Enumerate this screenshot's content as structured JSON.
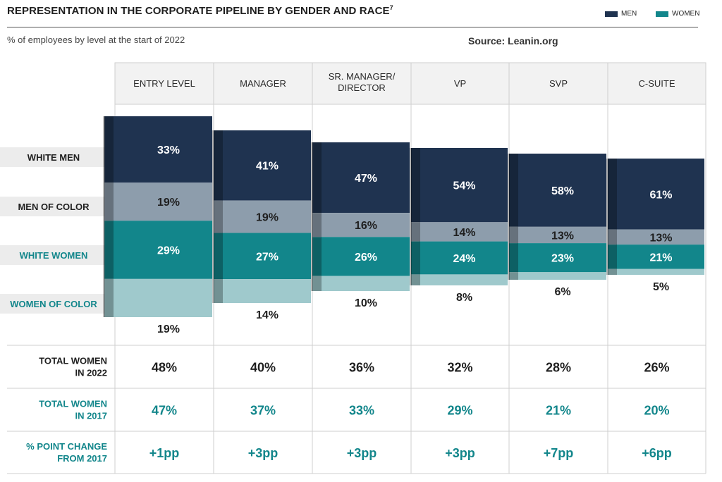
{
  "header": {
    "title": "REPRESENTATION IN THE CORPORATE PIPELINE BY GENDER AND RACE",
    "title_sup": "7",
    "subtitle": "% of employees by level at the start of 2022",
    "source": "Source: Leanin.org"
  },
  "legend": {
    "men_label": "MEN",
    "women_label": "WOMEN"
  },
  "colors": {
    "men": "#1f3350",
    "women": "#12868b",
    "white_men": "#1f3350",
    "men_of_color": "#8d9dac",
    "white_women": "#12868b",
    "women_of_color": "#9fc9cc",
    "teal_text": "#12868b"
  },
  "chart_data": {
    "type": "bar",
    "stacked": true,
    "categories": [
      "ENTRY LEVEL",
      "MANAGER",
      "SR. MANAGER/\nDIRECTOR",
      "VP",
      "SVP",
      "C-SUITE"
    ],
    "series": [
      {
        "name": "WHITE MEN",
        "values": [
          33,
          41,
          47,
          54,
          58,
          61
        ]
      },
      {
        "name": "MEN OF COLOR",
        "values": [
          19,
          19,
          16,
          14,
          13,
          13
        ]
      },
      {
        "name": "WHITE WOMEN",
        "values": [
          29,
          27,
          26,
          24,
          23,
          21
        ]
      },
      {
        "name": "WOMEN OF COLOR",
        "values": [
          19,
          14,
          10,
          8,
          6,
          5
        ]
      }
    ],
    "value_suffix": "%",
    "summary_rows": [
      {
        "label": "TOTAL WOMEN\nIN 2022",
        "values": [
          "48%",
          "40%",
          "36%",
          "32%",
          "28%",
          "26%"
        ],
        "style": "dark"
      },
      {
        "label": "TOTAL WOMEN\nIN 2017",
        "values": [
          "47%",
          "37%",
          "33%",
          "29%",
          "21%",
          "20%"
        ],
        "style": "teal"
      },
      {
        "label": "% POINT CHANGE\nFROM 2017",
        "values": [
          "+1pp",
          "+3pp",
          "+3pp",
          "+3pp",
          "+7pp",
          "+6pp"
        ],
        "style": "teal"
      }
    ]
  }
}
